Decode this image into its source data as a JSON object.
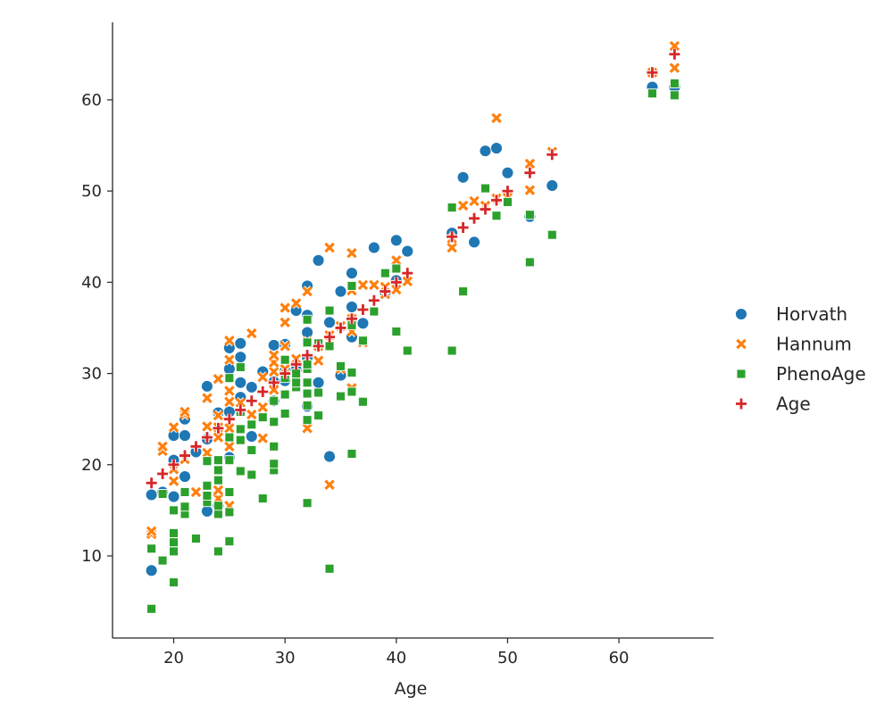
{
  "chart_data": {
    "type": "scatter",
    "xlabel": "Age",
    "ylabel": "",
    "xlim": [
      14.5,
      68.5
    ],
    "ylim": [
      1,
      68.5
    ],
    "xticks": [
      20,
      30,
      40,
      50,
      60
    ],
    "yticks": [
      10,
      20,
      30,
      40,
      50,
      60
    ],
    "grid": false,
    "legend_position": "right",
    "series": [
      {
        "name": "Horvath",
        "marker": "circle",
        "color": "#1f77b4",
        "points": [
          [
            18,
            8.4
          ],
          [
            18,
            16.7
          ],
          [
            19,
            17
          ],
          [
            20,
            16.5
          ],
          [
            20,
            20.5
          ],
          [
            20,
            23.2
          ],
          [
            21,
            18.7
          ],
          [
            21,
            23.2
          ],
          [
            21,
            25
          ],
          [
            22,
            21.4
          ],
          [
            23,
            14.9
          ],
          [
            23,
            22.8
          ],
          [
            23,
            28.6
          ],
          [
            24,
            15.5
          ],
          [
            24,
            25.7
          ],
          [
            25,
            20.8
          ],
          [
            25,
            25.8
          ],
          [
            25,
            30.5
          ],
          [
            25,
            32.8
          ],
          [
            26,
            27.4
          ],
          [
            26,
            29
          ],
          [
            26,
            31.8
          ],
          [
            26,
            33.3
          ],
          [
            27,
            23.1
          ],
          [
            27,
            28.5
          ],
          [
            28,
            30.2
          ],
          [
            29,
            27
          ],
          [
            29,
            29.1
          ],
          [
            29,
            33.1
          ],
          [
            30,
            29.2
          ],
          [
            30,
            30.3
          ],
          [
            30,
            33.2
          ],
          [
            31,
            30.4
          ],
          [
            31,
            36.9
          ],
          [
            32,
            26.4
          ],
          [
            32,
            31.7
          ],
          [
            32,
            34.5
          ],
          [
            32,
            36.4
          ],
          [
            32,
            39.6
          ],
          [
            33,
            29
          ],
          [
            33,
            42.4
          ],
          [
            34,
            20.9
          ],
          [
            34,
            35.6
          ],
          [
            35,
            29.8
          ],
          [
            35,
            39
          ],
          [
            36,
            34
          ],
          [
            36,
            37.3
          ],
          [
            36,
            41
          ],
          [
            37,
            35.5
          ],
          [
            38,
            43.8
          ],
          [
            39,
            38.9
          ],
          [
            40,
            40.2
          ],
          [
            40,
            44.6
          ],
          [
            41,
            43.4
          ],
          [
            45,
            45.4
          ],
          [
            46,
            51.5
          ],
          [
            47,
            44.4
          ],
          [
            48,
            54.4
          ],
          [
            49,
            54.7
          ],
          [
            50,
            52
          ],
          [
            52,
            47.2
          ],
          [
            54,
            50.6
          ],
          [
            63,
            61.4
          ],
          [
            65,
            61.4
          ]
        ]
      },
      {
        "name": "Hannum",
        "marker": "x",
        "color": "#ff7f0e",
        "points": [
          [
            18,
            12.4
          ],
          [
            18,
            12.7
          ],
          [
            19,
            21.5
          ],
          [
            19,
            22
          ],
          [
            20,
            18.2
          ],
          [
            20,
            19.5
          ],
          [
            20,
            24.1
          ],
          [
            21,
            20.6
          ],
          [
            21,
            25.5
          ],
          [
            21,
            25.8
          ],
          [
            22,
            17
          ],
          [
            23,
            21.3
          ],
          [
            23,
            24.2
          ],
          [
            23,
            27.3
          ],
          [
            24,
            16.3
          ],
          [
            24,
            17.2
          ],
          [
            24,
            23
          ],
          [
            24,
            24.1
          ],
          [
            24,
            25.4
          ],
          [
            24,
            29.4
          ],
          [
            25,
            15.5
          ],
          [
            25,
            22
          ],
          [
            25,
            24
          ],
          [
            25,
            26.9
          ],
          [
            25,
            28.1
          ],
          [
            25,
            31.5
          ],
          [
            25,
            33.6
          ],
          [
            26,
            26.8
          ],
          [
            27,
            25.5
          ],
          [
            27,
            34.4
          ],
          [
            28,
            22.9
          ],
          [
            28,
            26.3
          ],
          [
            28,
            29.6
          ],
          [
            29,
            28.2
          ],
          [
            29,
            30.2
          ],
          [
            29,
            31.2
          ],
          [
            29,
            32
          ],
          [
            30,
            30.5
          ],
          [
            30,
            33
          ],
          [
            30,
            35.6
          ],
          [
            30,
            37.2
          ],
          [
            31,
            31.6
          ],
          [
            31,
            37.7
          ],
          [
            32,
            24
          ],
          [
            32,
            31
          ],
          [
            32,
            33.5
          ],
          [
            32,
            39
          ],
          [
            33,
            31.4
          ],
          [
            33,
            33
          ],
          [
            34,
            17.8
          ],
          [
            34,
            34.2
          ],
          [
            34,
            43.8
          ],
          [
            35,
            30.5
          ],
          [
            35,
            35.2
          ],
          [
            36,
            28.4
          ],
          [
            36,
            34.6
          ],
          [
            36,
            36
          ],
          [
            36,
            39.1
          ],
          [
            36,
            43.2
          ],
          [
            37,
            33.4
          ],
          [
            37,
            39.7
          ],
          [
            38,
            39.7
          ],
          [
            39,
            38.7
          ],
          [
            39,
            39.5
          ],
          [
            40,
            39.2
          ],
          [
            40,
            42.4
          ],
          [
            41,
            40.1
          ],
          [
            45,
            43.8
          ],
          [
            45,
            44.8
          ],
          [
            46,
            48.4
          ],
          [
            47,
            48.9
          ],
          [
            48,
            48.4
          ],
          [
            49,
            49.2
          ],
          [
            49,
            58
          ],
          [
            50,
            49.3
          ],
          [
            52,
            50.1
          ],
          [
            52,
            53
          ],
          [
            54,
            54.3
          ],
          [
            63,
            63
          ],
          [
            65,
            63.5
          ],
          [
            65,
            65.9
          ]
        ]
      },
      {
        "name": "PhenoAge",
        "marker": "square",
        "color": "#2ca02c",
        "points": [
          [
            18,
            4.2
          ],
          [
            18,
            10.8
          ],
          [
            19,
            9.5
          ],
          [
            19,
            16.8
          ],
          [
            20,
            7.1
          ],
          [
            20,
            10.5
          ],
          [
            20,
            11.5
          ],
          [
            20,
            12.5
          ],
          [
            20,
            15
          ],
          [
            21,
            14.6
          ],
          [
            21,
            15.4
          ],
          [
            21,
            17
          ],
          [
            22,
            11.9
          ],
          [
            23,
            15.9
          ],
          [
            23,
            16.6
          ],
          [
            23,
            17.7
          ],
          [
            23,
            20.4
          ],
          [
            24,
            10.5
          ],
          [
            24,
            14.6
          ],
          [
            24,
            15.5
          ],
          [
            24,
            18.3
          ],
          [
            24,
            19.4
          ],
          [
            24,
            20.5
          ],
          [
            25,
            11.6
          ],
          [
            25,
            14.8
          ],
          [
            25,
            17
          ],
          [
            25,
            20.5
          ],
          [
            25,
            23
          ],
          [
            25,
            29.5
          ],
          [
            26,
            19.3
          ],
          [
            26,
            22.7
          ],
          [
            26,
            23.9
          ],
          [
            26,
            25.8
          ],
          [
            26,
            30.7
          ],
          [
            27,
            18.9
          ],
          [
            27,
            21.6
          ],
          [
            27,
            24.4
          ],
          [
            28,
            16.3
          ],
          [
            28,
            25.2
          ],
          [
            29,
            19.4
          ],
          [
            29,
            20.1
          ],
          [
            29,
            22
          ],
          [
            29,
            24.7
          ],
          [
            29,
            27
          ],
          [
            30,
            25.6
          ],
          [
            30,
            27.7
          ],
          [
            30,
            29.5
          ],
          [
            30,
            31.5
          ],
          [
            31,
            28.5
          ],
          [
            31,
            29
          ],
          [
            31,
            30
          ],
          [
            32,
            15.8
          ],
          [
            32,
            24.9
          ],
          [
            32,
            26.5
          ],
          [
            32,
            27.8
          ],
          [
            32,
            29
          ],
          [
            32,
            30.5
          ],
          [
            32,
            31
          ],
          [
            32,
            33.4
          ],
          [
            32,
            35.9
          ],
          [
            33,
            25.4
          ],
          [
            33,
            27.9
          ],
          [
            33,
            33.3
          ],
          [
            34,
            8.6
          ],
          [
            34,
            33
          ],
          [
            34,
            36.9
          ],
          [
            35,
            27.5
          ],
          [
            35,
            30.8
          ],
          [
            36,
            21.2
          ],
          [
            36,
            28
          ],
          [
            36,
            30.1
          ],
          [
            36,
            35.3
          ],
          [
            36,
            39.6
          ],
          [
            37,
            26.9
          ],
          [
            37,
            33.6
          ],
          [
            38,
            36.8
          ],
          [
            39,
            41
          ],
          [
            40,
            34.6
          ],
          [
            40,
            41.5
          ],
          [
            41,
            32.5
          ],
          [
            45,
            32.5
          ],
          [
            45,
            48.2
          ],
          [
            46,
            39
          ],
          [
            48,
            50.3
          ],
          [
            49,
            47.3
          ],
          [
            50,
            48.8
          ],
          [
            52,
            42.2
          ],
          [
            52,
            47.4
          ],
          [
            54,
            45.2
          ],
          [
            63,
            60.7
          ],
          [
            65,
            60.5
          ],
          [
            65,
            61.8
          ]
        ]
      },
      {
        "name": "Age",
        "marker": "plus",
        "color": "#d62728",
        "points": [
          [
            18,
            18
          ],
          [
            19,
            19
          ],
          [
            20,
            20
          ],
          [
            21,
            21
          ],
          [
            22,
            22
          ],
          [
            23,
            23
          ],
          [
            24,
            24
          ],
          [
            25,
            25
          ],
          [
            26,
            26
          ],
          [
            27,
            27
          ],
          [
            28,
            28
          ],
          [
            29,
            29
          ],
          [
            30,
            30
          ],
          [
            31,
            31
          ],
          [
            32,
            32
          ],
          [
            33,
            33
          ],
          [
            34,
            34
          ],
          [
            35,
            35
          ],
          [
            36,
            36
          ],
          [
            37,
            37
          ],
          [
            38,
            38
          ],
          [
            39,
            39
          ],
          [
            40,
            40
          ],
          [
            41,
            41
          ],
          [
            45,
            45
          ],
          [
            46,
            46
          ],
          [
            47,
            47
          ],
          [
            48,
            48
          ],
          [
            49,
            49
          ],
          [
            50,
            50
          ],
          [
            52,
            52
          ],
          [
            54,
            54
          ],
          [
            63,
            63
          ],
          [
            65,
            65
          ]
        ]
      }
    ]
  }
}
